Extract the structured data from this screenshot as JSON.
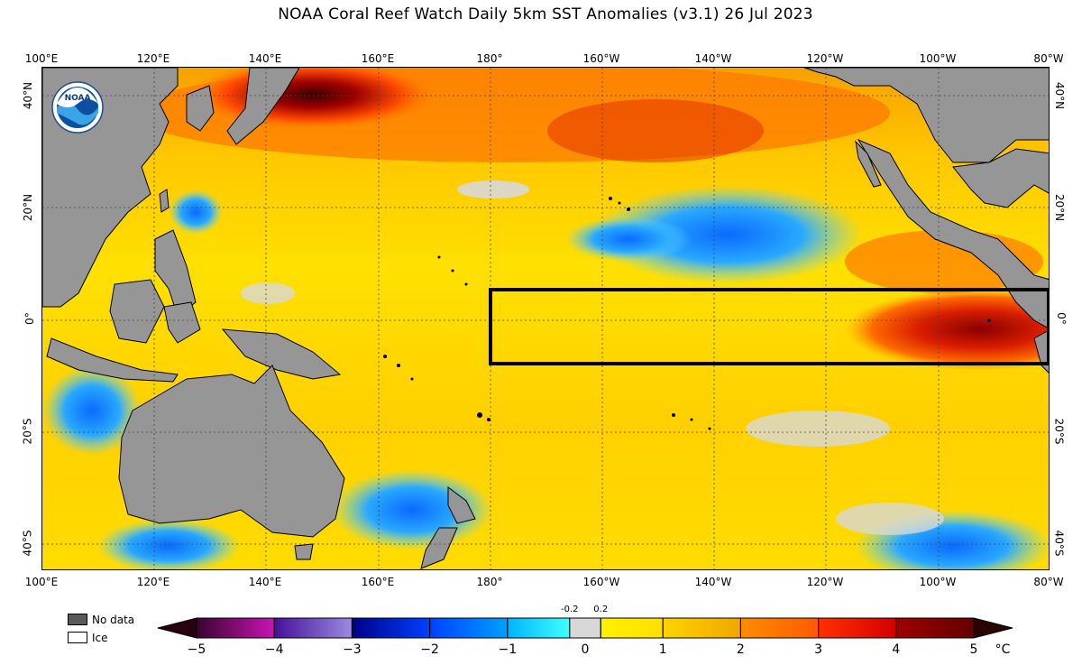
{
  "title": "NOAA Coral Reef Watch Daily 5km SST Anomalies  (v3.1)   26 Jul 2023",
  "logo_text": "NOAA",
  "lon_labels": [
    "100°E",
    "120°E",
    "140°E",
    "160°E",
    "180°",
    "160°W",
    "140°W",
    "120°W",
    "100°W",
    "80°W"
  ],
  "lat_labels_left": [
    "40°N",
    "20°N",
    "0°",
    "20°S",
    "40°S"
  ],
  "lat_labels_right": [
    "40°N",
    "20°N",
    "0°",
    "20°S",
    "40°S"
  ],
  "legend": {
    "no_data": "No data",
    "ice": "Ice",
    "no_data_color": "#595959",
    "ice_color": "#ffffff"
  },
  "colorbar": {
    "ticks": [
      "−5",
      "−4",
      "−3",
      "−2",
      "−1",
      "0",
      "1",
      "2",
      "3",
      "4",
      "5"
    ],
    "small_ticks": [
      "-0.2",
      "0.2"
    ],
    "unit": "°C",
    "range": [
      -5,
      5
    ],
    "under_color": "#2a0010",
    "over_color": "#2a0303",
    "segments": [
      {
        "from": -5,
        "to": -4,
        "start": "#3b0330",
        "end": "#c814b4"
      },
      {
        "from": -4,
        "to": -3,
        "start": "#46109a",
        "end": "#9a8ae0"
      },
      {
        "from": -3,
        "to": -2,
        "start": "#00008a",
        "end": "#0040ff"
      },
      {
        "from": -2,
        "to": -1,
        "start": "#0040ff",
        "end": "#00a0ff"
      },
      {
        "from": -1,
        "to": -0.2,
        "start": "#00b4ff",
        "end": "#40ffff"
      },
      {
        "from": -0.2,
        "to": 0.2,
        "start": "#d8d8d8",
        "end": "#d8d8d8"
      },
      {
        "from": 0.2,
        "to": 1,
        "start": "#fff200",
        "end": "#ffe000"
      },
      {
        "from": 1,
        "to": 2,
        "start": "#ffd200",
        "end": "#f0a800"
      },
      {
        "from": 2,
        "to": 3,
        "start": "#ff8c00",
        "end": "#ff5a00"
      },
      {
        "from": 3,
        "to": 4,
        "start": "#ff3000",
        "end": "#d40000"
      },
      {
        "from": 4,
        "to": 5,
        "start": "#a00000",
        "end": "#640000"
      }
    ]
  },
  "map_colors": {
    "land": "#969696",
    "ocean_base": "#ffd400",
    "neutral": "#d8d8d8",
    "cool": "#40b4ff",
    "cool_strong": "#1e78ff",
    "warm": "#f0a000",
    "warmer": "#ff6a00",
    "hot": "#dc2000",
    "hottest": "#5a0000",
    "nino_box": "#000000"
  }
}
